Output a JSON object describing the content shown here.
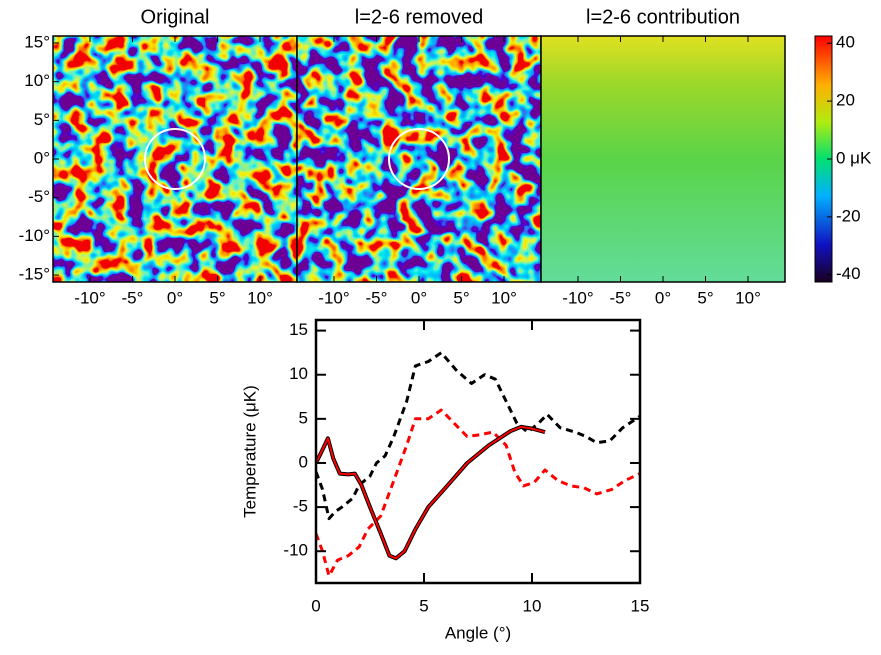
{
  "chart_data": [
    {
      "type": "map",
      "title": "Original",
      "xlim": [
        -14.35,
        14.35
      ],
      "ylim": [
        -15.9,
        15.9
      ],
      "xticks": [
        {
          "value": -10,
          "label": "-10°"
        },
        {
          "value": -5,
          "label": "-5°"
        },
        {
          "value": 0,
          "label": "0°"
        },
        {
          "value": 5,
          "label": "5°"
        },
        {
          "value": 10,
          "label": "10°"
        }
      ],
      "yticks": [
        {
          "value": 15,
          "label": "15°"
        },
        {
          "value": 10,
          "label": "10°"
        },
        {
          "value": 5,
          "label": "5°"
        },
        {
          "value": 0,
          "label": "0°"
        },
        {
          "value": -5,
          "label": "-5°"
        },
        {
          "value": -10,
          "label": "-10°"
        },
        {
          "value": -15,
          "label": "-15°"
        }
      ]
    },
    {
      "type": "map",
      "title": "l=2-6 removed",
      "xlim": [
        -14.35,
        14.35
      ],
      "ylim": [
        -15.9,
        15.9
      ],
      "xticks": [
        {
          "value": -10,
          "label": "-10°"
        },
        {
          "value": -5,
          "label": "-5°"
        },
        {
          "value": 0,
          "label": "0°"
        },
        {
          "value": 5,
          "label": "5°"
        },
        {
          "value": 10,
          "label": "10°"
        }
      ]
    },
    {
      "type": "smooth-map",
      "title": "l=2-6 contribution",
      "xlim": [
        -14.35,
        14.35
      ],
      "ylim": [
        -15.9,
        15.9
      ],
      "xticks": [
        {
          "value": -10,
          "label": "-10°"
        },
        {
          "value": -5,
          "label": "-5°"
        },
        {
          "value": 0,
          "label": "0°"
        },
        {
          "value": 5,
          "label": "5°"
        },
        {
          "value": 10,
          "label": "10°"
        }
      ],
      "colorbar_lim": [
        -42.5,
        42.5
      ],
      "colorbar_ticks": [
        40,
        20,
        {
          "value": 0,
          "label": "0 μK"
        },
        -20,
        -40
      ]
    },
    {
      "type": "line",
      "xlabel": "Angle (°)",
      "ylabel": "Temperature (μK)",
      "xlim": [
        0,
        15
      ],
      "ylim": [
        -13.6,
        16.2
      ],
      "xticks": [
        0,
        5,
        10,
        15
      ],
      "yticks": [
        -10,
        -5,
        0,
        5,
        10,
        15
      ],
      "series": [
        {
          "color": "#000000",
          "dash": true,
          "x": [
            0,
            0.3,
            0.6,
            0.9,
            1.2,
            1.7,
            2,
            2.5,
            2.8,
            3.2,
            3.6,
            4.2,
            4.6,
            5.2,
            5.8,
            6.5,
            7.2,
            7.8,
            8.3,
            8.8,
            9.3,
            9.8,
            10.3,
            10.7,
            11.3,
            12,
            12.5,
            13,
            13.6,
            14.2,
            15
          ],
          "values": [
            -1,
            -3,
            -6.3,
            -5.5,
            -5,
            -4,
            -2.5,
            -1.5,
            0,
            0.8,
            3,
            7,
            11,
            11.5,
            12.5,
            10.5,
            9,
            10,
            9.5,
            7,
            4.5,
            3.5,
            4.5,
            5.5,
            4,
            3.5,
            3,
            2.3,
            2.5,
            4,
            5.3
          ]
        },
        {
          "color": "#ff0000",
          "dash": true,
          "x": [
            0,
            0.3,
            0.6,
            1,
            1.5,
            2,
            2.4,
            3,
            3.6,
            4.2,
            4.6,
            5.2,
            5.8,
            6.4,
            7,
            7.6,
            8.2,
            8.8,
            9.2,
            9.6,
            10.1,
            10.6,
            11.2,
            11.8,
            12.4,
            13,
            13.7,
            14.3,
            15
          ],
          "values": [
            -8,
            -10,
            -12.8,
            -11,
            -10.5,
            -9.5,
            -7.5,
            -6,
            -2,
            2,
            5,
            5,
            6,
            4.5,
            3,
            3.2,
            3.5,
            2,
            -1,
            -2.6,
            -2.2,
            -0.8,
            -2,
            -2.6,
            -2.8,
            -3.5,
            -3,
            -2,
            -1.2
          ]
        },
        {
          "color": "#000000",
          "dash": false,
          "width": 4,
          "x": [
            0,
            0.3,
            0.55,
            0.8,
            1.1,
            1.5,
            1.8,
            2.1,
            2.5,
            3,
            3.4,
            3.7,
            4.1,
            4.6,
            5.2,
            6,
            7,
            8,
            9,
            9.5,
            10,
            10.6
          ],
          "values": [
            0,
            1.5,
            2.8,
            0.5,
            -1.2,
            -1.3,
            -1.2,
            -2.5,
            -5,
            -8,
            -10.5,
            -10.8,
            -10,
            -7.5,
            -5,
            -2.8,
            0,
            2,
            3.6,
            4.1,
            3.9,
            3.5
          ]
        },
        {
          "color": "#ff0000",
          "dash": false,
          "width": 2,
          "x": [
            0,
            0.3,
            0.55,
            0.8,
            1.1,
            1.5,
            1.8,
            2.1,
            2.5,
            3,
            3.4,
            3.7,
            4.1,
            4.6,
            5.2,
            6,
            7,
            8,
            9,
            9.5,
            10,
            10.6
          ],
          "values": [
            0,
            1.5,
            2.8,
            0.5,
            -1.2,
            -1.3,
            -1.2,
            -2.5,
            -5,
            -8,
            -10.5,
            -10.8,
            -10,
            -7.5,
            -5,
            -2.8,
            0,
            2,
            3.6,
            4.1,
            3.9,
            3.5
          ]
        }
      ]
    }
  ]
}
